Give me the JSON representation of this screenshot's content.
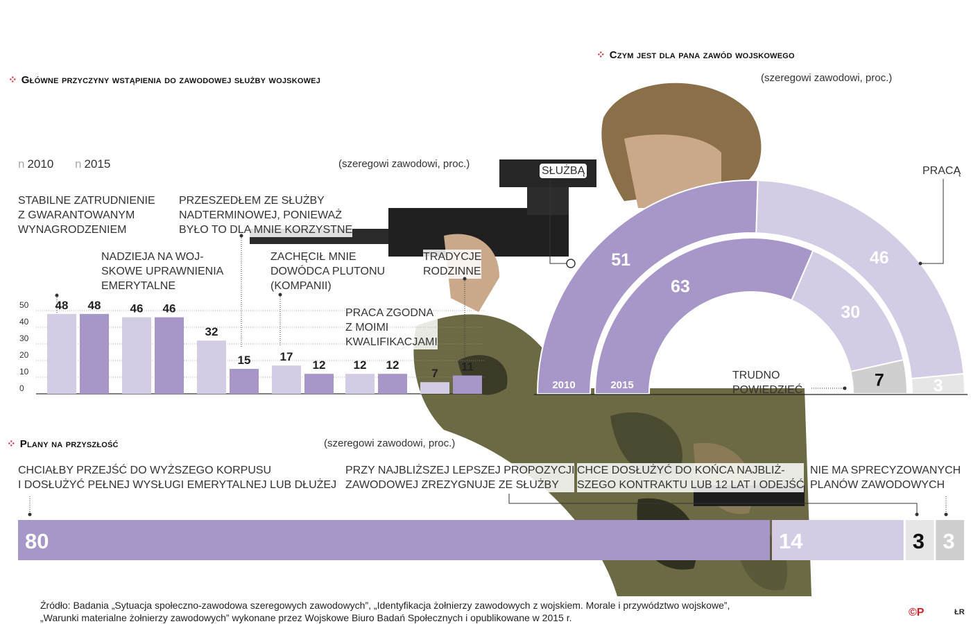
{
  "colors": {
    "y2010": "#d3cce4",
    "y2015": "#a797c8",
    "light": "#e6e6e6",
    "grey": "#cfcfcf",
    "accent": "#d4202a",
    "photo_camo": "#6b6a45"
  },
  "chart_data": [
    {
      "type": "bar",
      "title": "Główne przyczyny wstąpienia do zawodowej służby wojskowej",
      "subtitle": "(szeregowi zawodowi, proc.)",
      "legend": [
        "2010",
        "2015"
      ],
      "legend_marker": "n",
      "yticks": [
        "50",
        "40",
        "30",
        "20",
        "10",
        "0"
      ],
      "ylim": [
        0,
        50
      ],
      "categories": [
        "Stabilne zatrudnienie\nz gwarantowanym\nwynagrodzeniem",
        "Nadzieja na woj-\nskowe uprawnienia\nemerytalne",
        "Przeszedłem ze służby\nnadterminowej, ponieważ\nbyło to dla mnie korzystne",
        "Zachęcił mnie\ndowódca plutonu\n(kompanii)",
        "Praca zgodna\nz moimi\nkwalifikacjami",
        "Tradycje\nrodzinne"
      ],
      "series": [
        {
          "name": "2010",
          "values": [
            48,
            46,
            32,
            17,
            12,
            7
          ]
        },
        {
          "name": "2015",
          "values": [
            48,
            46,
            15,
            12,
            12,
            11
          ]
        }
      ]
    },
    {
      "type": "pie",
      "title": "Czym jest dla pana zawód wojskowego",
      "subtitle": "(szeregowi zawodowi, proc.)",
      "categories": [
        "Służbą",
        "Pracą",
        "Trudno\npowiedzieć"
      ],
      "series": [
        {
          "name": "2010",
          "values": [
            51,
            46,
            3
          ]
        },
        {
          "name": "2015",
          "values": [
            63,
            30,
            7
          ]
        }
      ]
    },
    {
      "type": "bar",
      "title": "Plany na przyszłość",
      "subtitle": "(szeregowi zawodowi, proc.)",
      "categories": [
        "Chciałby przejść do wyższego korpusu\ni dosłużyć pełnej wysługi emerytalnej lub dłużej",
        "Przy najbliższej lepszej propozycji\nzawodowej zrezygnuje ze służby",
        "Chce dosłużyć do końca najbliż-\nszego kontraktu lub 12 lat i odejść",
        "Nie ma sprecyzowanych\nplanów zawodowych"
      ],
      "values": [
        80,
        14,
        3,
        3
      ]
    }
  ],
  "footer": {
    "source": "Źródło: Badania „Sytuacja społeczno-zawodowa szeregowych zawodowych”, „Identyfikacja żołnierzy zawodowych z wojskiem. Morale i przywództwo wojskowe”,\n„Warunki materialne żołnierzy zawodowych” wykonane przez Wojskowe Biuro Badań Społecznych i opublikowane w 2015 r.",
    "logo": "©P",
    "author": "ŁR"
  }
}
